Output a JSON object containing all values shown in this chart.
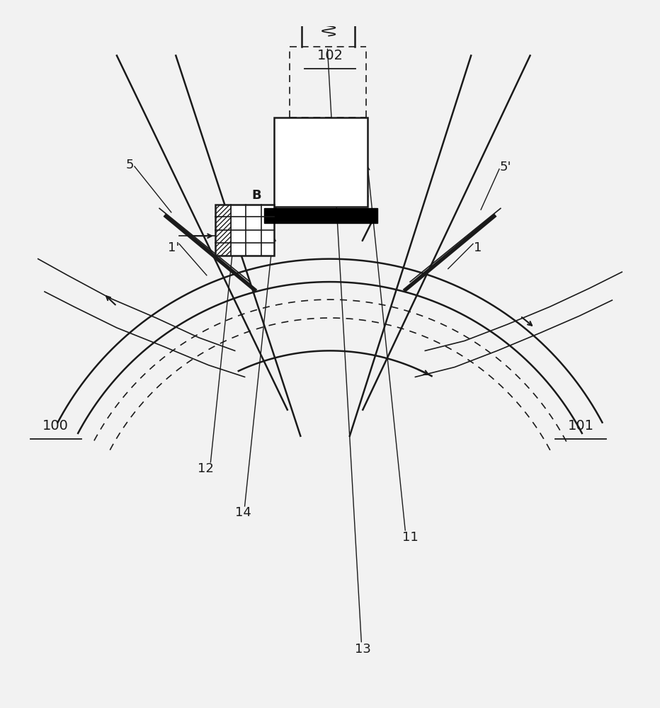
{
  "bg_color": "#f2f2f2",
  "line_color": "#1a1a1a",
  "lw_thin": 1.2,
  "lw_med": 1.8,
  "lw_thick": 4.0,
  "fs_label": 14,
  "fs_ref": 13
}
